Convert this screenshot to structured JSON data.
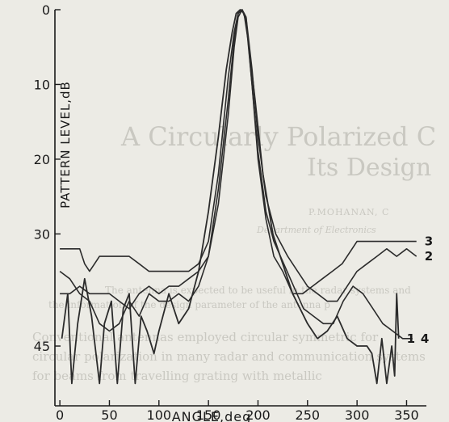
{
  "background_text": {
    "title_line1": "A Circularly Polarized C",
    "title_line2": "Its Design",
    "author": "P.MOHANAN, C",
    "dept": "Department of Electronics",
    "para1": "The antenna is expected to be useful in the radar systems and",
    "para2": "the information of the design parameter of the antenna p",
    "para3": "Conventional antennas employed circular symmetric for",
    "para4": "circular polarization in many radar and communication systems",
    "para5": "for beams from travelling grating with metallic"
  },
  "chart_data": {
    "type": "line",
    "title": "",
    "xlabel": "ANGLE,deg",
    "ylabel": "PATTERN LEVEL,dB",
    "xlim": [
      -5,
      370
    ],
    "ylim": [
      0,
      53
    ],
    "y_inverted": true,
    "x_ticks": [
      0,
      50,
      100,
      150,
      200,
      250,
      300,
      350
    ],
    "y_ticks": [
      0,
      10,
      20,
      30,
      45
    ],
    "grid": false,
    "series": [
      {
        "name": "1",
        "points": [
          [
            2,
            44
          ],
          [
            8,
            38
          ],
          [
            12,
            50
          ],
          [
            18,
            42
          ],
          [
            25,
            36
          ],
          [
            32,
            41
          ],
          [
            40,
            50
          ],
          [
            45,
            42
          ],
          [
            52,
            39
          ],
          [
            58,
            50
          ],
          [
            64,
            40
          ],
          [
            70,
            38
          ],
          [
            76,
            50
          ],
          [
            82,
            41
          ],
          [
            88,
            43
          ],
          [
            95,
            46
          ],
          [
            100,
            43
          ],
          [
            110,
            38
          ],
          [
            120,
            42
          ],
          [
            130,
            40
          ],
          [
            140,
            35
          ],
          [
            150,
            27
          ],
          [
            160,
            17
          ],
          [
            168,
            8
          ],
          [
            174,
            3
          ],
          [
            178,
            0.5
          ],
          [
            182,
            0
          ],
          [
            186,
            0.5
          ],
          [
            190,
            4
          ],
          [
            197,
            12
          ],
          [
            205,
            22
          ],
          [
            215,
            30
          ],
          [
            225,
            34
          ],
          [
            235,
            38
          ],
          [
            250,
            42
          ],
          [
            260,
            44
          ],
          [
            270,
            43
          ],
          [
            280,
            41
          ],
          [
            290,
            44
          ],
          [
            300,
            45
          ],
          [
            310,
            45
          ],
          [
            315,
            46
          ],
          [
            320,
            50
          ],
          [
            325,
            44
          ],
          [
            330,
            50
          ],
          [
            335,
            45
          ],
          [
            338,
            49
          ],
          [
            340,
            38
          ],
          [
            342,
            44
          ]
        ]
      },
      {
        "name": "2",
        "points": [
          [
            0,
            35
          ],
          [
            10,
            36
          ],
          [
            20,
            38
          ],
          [
            30,
            39
          ],
          [
            40,
            42
          ],
          [
            50,
            43
          ],
          [
            60,
            42
          ],
          [
            70,
            39
          ],
          [
            80,
            41
          ],
          [
            90,
            38
          ],
          [
            100,
            39
          ],
          [
            110,
            39
          ],
          [
            120,
            38
          ],
          [
            130,
            39
          ],
          [
            140,
            37
          ],
          [
            150,
            33
          ],
          [
            160,
            24
          ],
          [
            170,
            12
          ],
          [
            176,
            4
          ],
          [
            180,
            0.5
          ],
          [
            184,
            0
          ],
          [
            188,
            1
          ],
          [
            194,
            8
          ],
          [
            200,
            17
          ],
          [
            208,
            25
          ],
          [
            218,
            30
          ],
          [
            230,
            33
          ],
          [
            240,
            35
          ],
          [
            250,
            37
          ],
          [
            260,
            38
          ],
          [
            270,
            39
          ],
          [
            280,
            39
          ],
          [
            290,
            37
          ],
          [
            300,
            35
          ],
          [
            310,
            34
          ],
          [
            320,
            33
          ],
          [
            330,
            32
          ],
          [
            340,
            33
          ],
          [
            350,
            32
          ],
          [
            360,
            33
          ]
        ]
      },
      {
        "name": "3",
        "points": [
          [
            0,
            32
          ],
          [
            10,
            32
          ],
          [
            20,
            32
          ],
          [
            25,
            34
          ],
          [
            30,
            35
          ],
          [
            35,
            34
          ],
          [
            40,
            33
          ],
          [
            50,
            33
          ],
          [
            60,
            33
          ],
          [
            70,
            33
          ],
          [
            80,
            34
          ],
          [
            90,
            35
          ],
          [
            100,
            35
          ],
          [
            110,
            35
          ],
          [
            120,
            35
          ],
          [
            130,
            35
          ],
          [
            140,
            34
          ],
          [
            150,
            31
          ],
          [
            160,
            22
          ],
          [
            170,
            9
          ],
          [
            176,
            3
          ],
          [
            180,
            0.5
          ],
          [
            184,
            0
          ],
          [
            188,
            1.5
          ],
          [
            194,
            10
          ],
          [
            200,
            20
          ],
          [
            208,
            28
          ],
          [
            216,
            33
          ],
          [
            225,
            35
          ],
          [
            235,
            38
          ],
          [
            245,
            38
          ],
          [
            255,
            37
          ],
          [
            265,
            36
          ],
          [
            275,
            35
          ],
          [
            285,
            34
          ],
          [
            295,
            32
          ],
          [
            300,
            31
          ],
          [
            310,
            31
          ],
          [
            320,
            31
          ],
          [
            330,
            31
          ],
          [
            340,
            31
          ],
          [
            350,
            31
          ],
          [
            360,
            31
          ]
        ]
      },
      {
        "name": "4",
        "points": [
          [
            0,
            38
          ],
          [
            10,
            38
          ],
          [
            20,
            37
          ],
          [
            30,
            38
          ],
          [
            40,
            38
          ],
          [
            50,
            38
          ],
          [
            60,
            39
          ],
          [
            70,
            40
          ],
          [
            80,
            38
          ],
          [
            90,
            37
          ],
          [
            100,
            38
          ],
          [
            110,
            37
          ],
          [
            120,
            37
          ],
          [
            130,
            36
          ],
          [
            140,
            35
          ],
          [
            150,
            33
          ],
          [
            160,
            26
          ],
          [
            170,
            14
          ],
          [
            176,
            5
          ],
          [
            180,
            1
          ],
          [
            184,
            0
          ],
          [
            188,
            1
          ],
          [
            194,
            10
          ],
          [
            200,
            19
          ],
          [
            208,
            27
          ],
          [
            216,
            31
          ],
          [
            226,
            34
          ],
          [
            236,
            37
          ],
          [
            246,
            40
          ],
          [
            256,
            41
          ],
          [
            266,
            42
          ],
          [
            276,
            42
          ],
          [
            286,
            39
          ],
          [
            296,
            37
          ],
          [
            306,
            38
          ],
          [
            316,
            40
          ],
          [
            326,
            42
          ],
          [
            336,
            43
          ],
          [
            346,
            44
          ],
          [
            356,
            44
          ]
        ]
      }
    ],
    "line_color": "#2b2b2b"
  }
}
